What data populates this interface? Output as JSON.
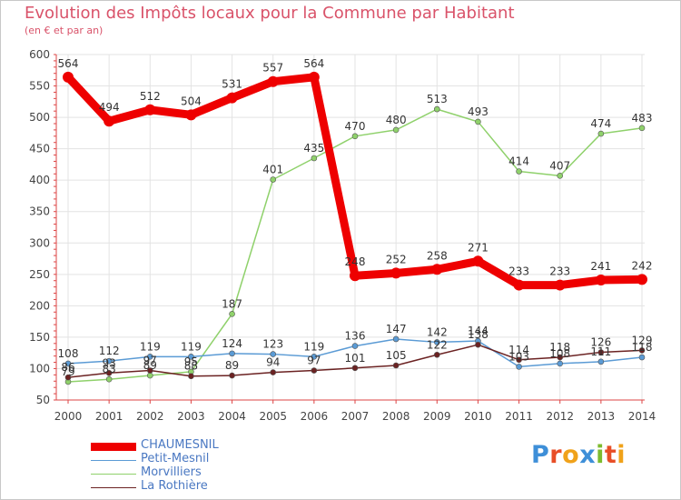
{
  "title": "Evolution des Impôts locaux pour la Commune par Habitant",
  "subtitle": "(en € et par an)",
  "logo": {
    "letters": [
      "P",
      "r",
      "o",
      "x",
      "i",
      "t",
      "i"
    ],
    "colors": [
      "#3e8fd8",
      "#e84e27",
      "#f0a21a",
      "#3e8fd8",
      "#7dbb2e",
      "#e84e27",
      "#f0a21a"
    ]
  },
  "chart_data": {
    "type": "line",
    "title": "Evolution des Impôts locaux pour la Commune par Habitant",
    "subtitle": "(en € et par an)",
    "xlabel": "",
    "ylabel": "",
    "ylim": [
      50,
      600
    ],
    "yticks": [
      50,
      100,
      150,
      200,
      250,
      300,
      350,
      400,
      450,
      500,
      550,
      600
    ],
    "grid": true,
    "legend_position": "bottom-left",
    "categories": [
      "2000",
      "2001",
      "2002",
      "2003",
      "2004",
      "2005",
      "2006",
      "2007",
      "2008",
      "2009",
      "2010",
      "2011",
      "2012",
      "2013",
      "2014"
    ],
    "series": [
      {
        "name": "CHAUMESNIL",
        "color": "#ee0000",
        "values": [
          564,
          494,
          512,
          504,
          531,
          557,
          564,
          248,
          252,
          258,
          271,
          233,
          233,
          241,
          242
        ],
        "labels": [
          "564",
          "494",
          "512",
          "504",
          "531",
          "557",
          "564",
          "248",
          "252",
          "258",
          "271",
          "233",
          "233",
          "241",
          "242"
        ]
      },
      {
        "name": "Petit-Mesnil",
        "color": "#5b9bd5",
        "values": [
          108,
          112,
          119,
          119,
          124,
          123,
          119,
          136,
          147,
          142,
          144,
          103,
          108,
          111,
          118
        ],
        "labels": [
          "108",
          "112",
          "119",
          "119",
          "124",
          "123",
          "119",
          "136",
          "147",
          "142",
          "144",
          "103",
          "108",
          "111",
          "118"
        ]
      },
      {
        "name": "Morvilliers",
        "color": "#8fd16b",
        "values": [
          79,
          83,
          89,
          95,
          187,
          401,
          435,
          470,
          480,
          513,
          493,
          414,
          407,
          474,
          483
        ],
        "labels": [
          "79",
          "83",
          "89",
          "95",
          "187",
          "401",
          "435",
          "470",
          "480",
          "513",
          "493",
          "414",
          "407",
          "474",
          "483"
        ]
      },
      {
        "name": "La Rothière",
        "color": "#6b2222",
        "values": [
          86,
          93,
          97,
          88,
          89,
          94,
          97,
          101,
          105,
          122,
          138,
          114,
          118,
          126,
          129
        ],
        "labels": [
          "86",
          "93",
          "97",
          "88",
          "89",
          "94",
          "97",
          "101",
          "105",
          "122",
          "138",
          "114",
          "118",
          "126",
          "129"
        ]
      }
    ]
  }
}
